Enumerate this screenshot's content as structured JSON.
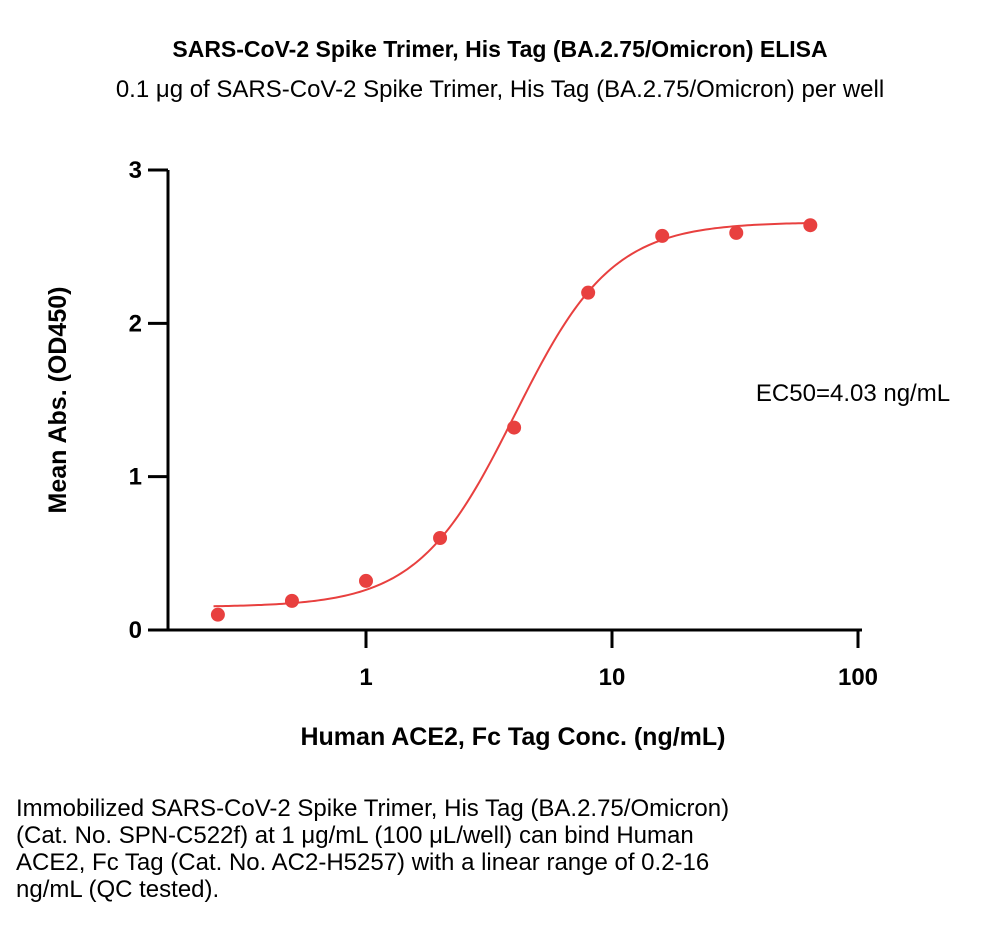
{
  "title": "SARS-CoV-2 Spike Trimer, His Tag (BA.2.75/Omicron) ELISA",
  "subtitle": "0.1 μg of SARS-CoV-2 Spike Trimer, His Tag (BA.2.75/Omicron) per well",
  "annotation": "EC50=4.03 ng/mL",
  "caption_lines": [
    "Immobilized SARS-CoV-2 Spike Trimer, His Tag (BA.2.75/Omicron)",
    "(Cat. No. SPN-C522f) at 1 μg/mL (100 μL/well) can bind Human",
    "ACE2, Fc Tag (Cat. No. AC2-H5257) with a linear range of 0.2-16",
    "ng/mL (QC tested)."
  ],
  "colors": {
    "series": "#e8403f",
    "axis": "#000000"
  },
  "chart_data": {
    "type": "scatter",
    "title": "SARS-CoV-2 Spike Trimer, His Tag (BA.2.75/Omicron) ELISA",
    "subtitle": "0.1 μg of SARS-CoV-2 Spike Trimer, His Tag (BA.2.75/Omicron) per well",
    "xlabel": "Human ACE2, Fc Tag Conc. (ng/mL)",
    "ylabel": "Mean Abs. (OD450)",
    "xscale": "log",
    "xlim": [
      0.2,
      100
    ],
    "ylim": [
      0,
      3
    ],
    "xticks": [
      1,
      10,
      100
    ],
    "xtick_labels": [
      "1",
      "10",
      "100"
    ],
    "yticks": [
      0,
      1,
      2,
      3
    ],
    "ytick_labels": [
      "0",
      "1",
      "2",
      "3"
    ],
    "grid": false,
    "series": [
      {
        "x": [
          0.25,
          0.5,
          1,
          2,
          4,
          8,
          16,
          32,
          64
        ],
        "y": [
          0.1,
          0.19,
          0.32,
          0.6,
          1.32,
          2.2,
          2.57,
          2.59,
          2.64
        ],
        "fit": "four-parameter logistic",
        "fit_params": {
          "bottom": 0.15,
          "top": 2.66,
          "ec50": 4.03,
          "hill": 2.2
        }
      }
    ],
    "annotations": [
      "EC50=4.03 ng/mL"
    ]
  }
}
